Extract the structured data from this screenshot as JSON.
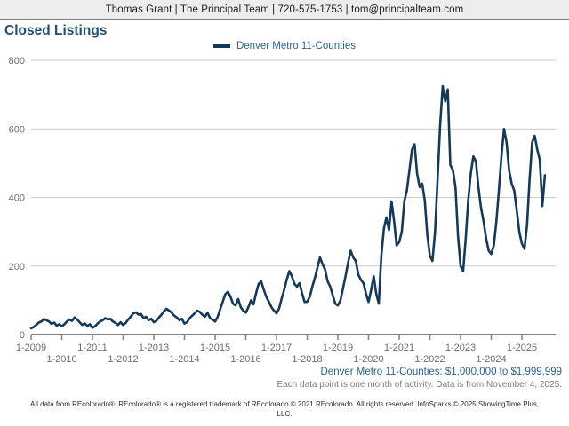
{
  "header": {
    "contact": "Thomas Grant | The Principal Team | 720-575-1753 | tom@principalteam.com"
  },
  "title": "Closed Listings",
  "chart_data": {
    "type": "line",
    "title": "Closed Listings",
    "x_start": "2009-01",
    "x_end": "2025-10",
    "x_unit": "month",
    "x_tick_labels": [
      "1-2009",
      "1-2010",
      "1-2011",
      "1-2012",
      "1-2013",
      "1-2014",
      "1-2015",
      "1-2016",
      "1-2017",
      "1-2018",
      "1-2019",
      "1-2020",
      "1-2021",
      "1-2022",
      "1-2023",
      "1-2024",
      "1-2025"
    ],
    "ylim": [
      0,
      800
    ],
    "y_ticks": [
      0,
      200,
      400,
      600,
      800
    ],
    "grid": true,
    "legend_position": "top",
    "series": [
      {
        "name": "Denver Metro 11-Counties",
        "color": "#14395b",
        "values": [
          18,
          22,
          28,
          35,
          38,
          45,
          42,
          38,
          31,
          35,
          26,
          30,
          24,
          30,
          38,
          44,
          40,
          50,
          44,
          36,
          28,
          32,
          25,
          30,
          20,
          24,
          32,
          38,
          42,
          48,
          44,
          46,
          38,
          34,
          28,
          36,
          28,
          34,
          44,
          52,
          62,
          65,
          58,
          60,
          48,
          52,
          42,
          46,
          36,
          40,
          50,
          58,
          68,
          75,
          70,
          64,
          55,
          50,
          42,
          46,
          32,
          36,
          48,
          55,
          62,
          70,
          66,
          58,
          52,
          64,
          48,
          44,
          38,
          52,
          75,
          96,
          118,
          125,
          110,
          90,
          85,
          104,
          80,
          70,
          64,
          80,
          100,
          88,
          120,
          148,
          155,
          132,
          110,
          96,
          80,
          70,
          62,
          76,
          105,
          130,
          160,
          185,
          170,
          148,
          140,
          150,
          120,
          95,
          96,
          110,
          140,
          165,
          195,
          225,
          205,
          190,
          155,
          140,
          114,
          90,
          85,
          100,
          135,
          170,
          210,
          245,
          225,
          215,
          175,
          160,
          150,
          120,
          95,
          130,
          170,
          120,
          90,
          230,
          310,
          342,
          305,
          388,
          330,
          260,
          270,
          300,
          390,
          420,
          480,
          540,
          555,
          470,
          430,
          440,
          390,
          290,
          230,
          215,
          300,
          450,
          610,
          725,
          680,
          715,
          495,
          480,
          430,
          290,
          200,
          185,
          280,
          390,
          470,
          520,
          505,
          430,
          370,
          330,
          280,
          245,
          235,
          260,
          330,
          420,
          520,
          600,
          560,
          480,
          440,
          420,
          360,
          300,
          265,
          250,
          320,
          450,
          560,
          580,
          540,
          510,
          375,
          465
        ]
      }
    ]
  },
  "footnotes": {
    "range": "Denver Metro 11-Counties: $1,000,000 to $1,999,999",
    "source": "Each data point is one month of activity. Data is from November 4, 2025.",
    "disclaimer": "All data from REcolorado®. REcolorado® is a registered trademark of REcolorado © 2021 REcolorado. All rights reserved. InfoSparks © 2025 ShowingTime Plus, LLC."
  },
  "colors": {
    "accent_line": "#14395b",
    "title_text": "#1f4e79",
    "link_blue": "#2a6496",
    "gridline": "#cccccc",
    "axis": "#808080",
    "tick_text": "#6e6e6e",
    "header_bg": "#ededed"
  }
}
